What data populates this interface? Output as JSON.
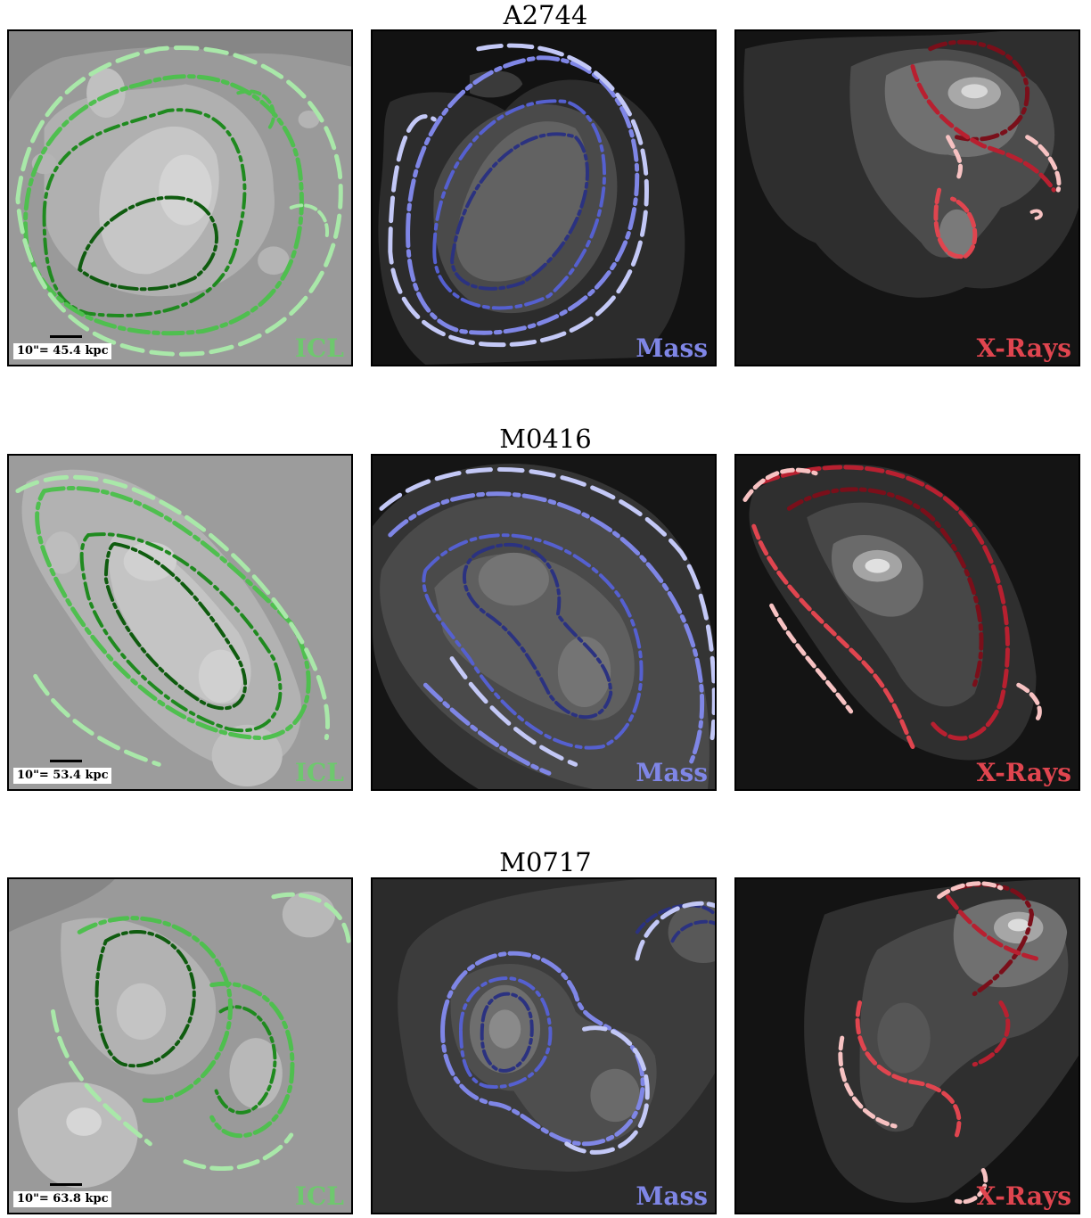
{
  "rows": [
    {
      "cluster": "A2744",
      "scale": "10\"= 45.4 kpc"
    },
    {
      "cluster": "M0416",
      "scale": "10\"= 53.4 kpc"
    },
    {
      "cluster": "M0717",
      "scale": "10\"= 63.8 kpc"
    }
  ],
  "labels": {
    "icl": "ICL",
    "mass": "Mass",
    "xray": "X-Rays"
  },
  "colors": {
    "icl": [
      "#a9e8a9",
      "#4fbf4f",
      "#1f8a1f",
      "#0f5c0f"
    ],
    "mass": [
      "#c3c8f6",
      "#7f86e6",
      "#5560d0",
      "#2b3280"
    ],
    "xray": [
      "#f7c2c2",
      "#e0454f",
      "#b82030",
      "#7a0f1a"
    ]
  }
}
